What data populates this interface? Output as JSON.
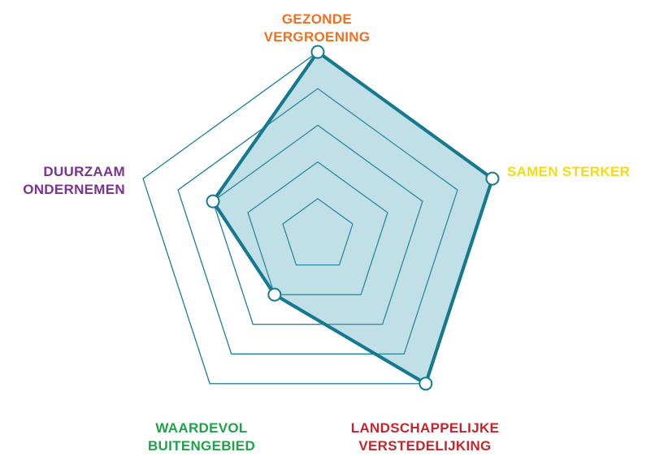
{
  "chart_data": {
    "type": "radar",
    "categories": [
      [
        "GEZONDE",
        "VERGROENING"
      ],
      [
        "SAMEN STERKER"
      ],
      [
        "LANDSCHAPPELIJKE",
        "VERSTEDELIJKING"
      ],
      [
        "WAARDEVOL",
        "BUITENGEBIED"
      ],
      [
        "DUURZAAM",
        "ONDERNEMEN"
      ]
    ],
    "category_colors": [
      "#ee7023",
      "#f5d914",
      "#c1272d",
      "#1fa34a",
      "#7b3293"
    ],
    "levels": 5,
    "range": [
      0,
      5
    ],
    "series": [
      {
        "values": [
          5,
          5,
          5,
          2,
          3
        ]
      }
    ],
    "grid_color": "#23849a",
    "line_color": "#157a90",
    "fill_color": "#b9dbe4"
  }
}
